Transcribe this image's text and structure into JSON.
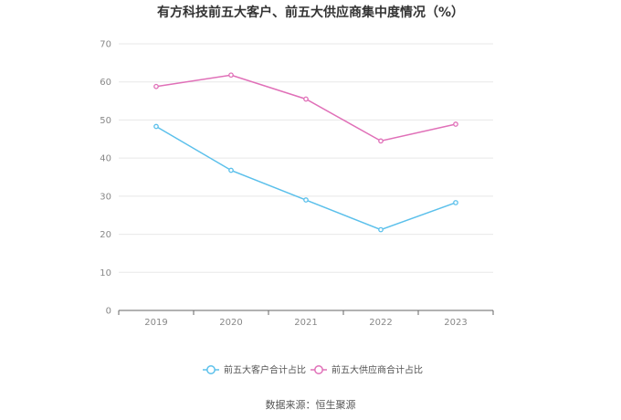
{
  "chart_data": {
    "type": "line",
    "title": "有方科技前五大客户、前五大供应商集中度情况（%）",
    "categories": [
      "2019",
      "2020",
      "2021",
      "2022",
      "2023"
    ],
    "ylim": [
      0,
      70
    ],
    "yticks": [
      0,
      10,
      20,
      30,
      40,
      50,
      60,
      70
    ],
    "grid": true,
    "legend_position": "bottom",
    "series": [
      {
        "name": "前五大客户合计占比",
        "color": "#5bc0eb",
        "values": [
          48.3,
          36.8,
          29.0,
          21.2,
          28.3
        ]
      },
      {
        "name": "前五大供应商合计占比",
        "color": "#e070b8",
        "values": [
          58.8,
          61.8,
          55.5,
          44.5,
          48.9
        ]
      }
    ]
  },
  "source": "数据来源：恒生聚源"
}
